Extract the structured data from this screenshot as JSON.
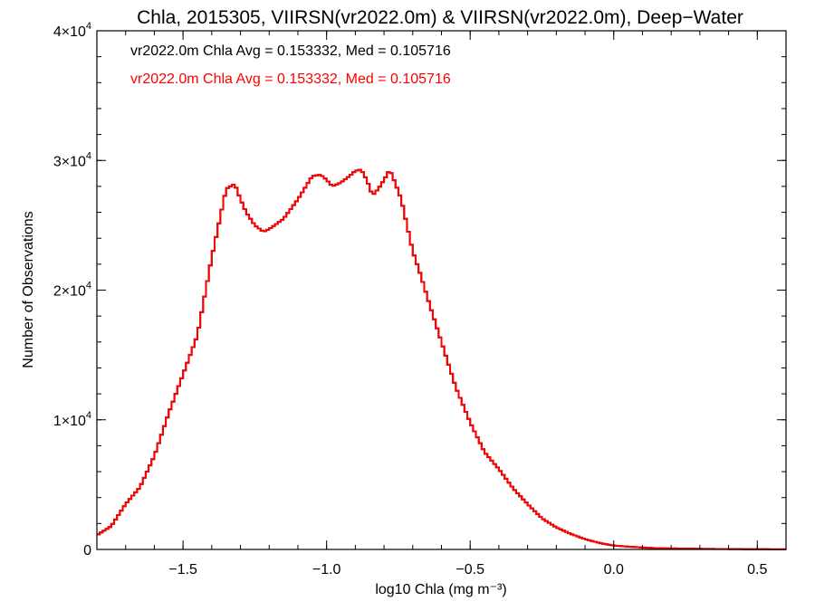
{
  "chart_data": {
    "type": "line",
    "title": "Chla, 2015305, VIIRSN(vr2022.0m) & VIIRSN(vr2022.0m), Deep−Water",
    "xlabel": "log10 Chla (mg m⁻³)",
    "ylabel": "Number of Observations",
    "xlim": [
      -1.8,
      0.6
    ],
    "ylim": [
      0,
      40000
    ],
    "x_ticks": [
      -1.5,
      -1.0,
      -0.5,
      0.0,
      0.5
    ],
    "x_tick_labels": [
      "−1.5",
      "−1.0",
      "−0.5",
      "0.0",
      "0.5"
    ],
    "y_ticks": [
      0,
      10000,
      20000,
      30000,
      40000
    ],
    "y_tick_labels": [
      {
        "base": "0",
        "exp": ""
      },
      {
        "base": "1×10",
        "exp": "4"
      },
      {
        "base": "2×10",
        "exp": "4"
      },
      {
        "base": "3×10",
        "exp": "4"
      },
      {
        "base": "4×10",
        "exp": "4"
      }
    ],
    "grid": false,
    "step": true,
    "annotations": [
      {
        "text": "vr2022.0m Chla Avg = 0.153332, Med = 0.105716",
        "color": "#000000"
      },
      {
        "text": "vr2022.0m Chla Avg = 0.153332, Med = 0.105716",
        "color": "#ff0000"
      }
    ],
    "series": [
      {
        "color": "#000000",
        "x": [
          -1.8,
          -1.75,
          -1.7,
          -1.65,
          -1.6,
          -1.55,
          -1.5,
          -1.45,
          -1.4,
          -1.35,
          -1.32,
          -1.3,
          -1.28,
          -1.25,
          -1.22,
          -1.2,
          -1.15,
          -1.1,
          -1.05,
          -1.02,
          -1.0,
          -0.98,
          -0.95,
          -0.92,
          -0.9,
          -0.88,
          -0.86,
          -0.84,
          -0.82,
          -0.8,
          -0.78,
          -0.76,
          -0.74,
          -0.72,
          -0.7,
          -0.67,
          -0.65,
          -0.6,
          -0.55,
          -0.5,
          -0.45,
          -0.4,
          -0.35,
          -0.3,
          -0.25,
          -0.2,
          -0.15,
          -0.1,
          -0.05,
          0.0,
          0.05,
          0.1,
          0.15,
          0.2,
          0.3,
          0.4,
          0.5,
          0.6
        ],
        "y": [
          1100,
          1800,
          3500,
          4800,
          7200,
          10500,
          13500,
          16500,
          22500,
          27800,
          28200,
          27000,
          26000,
          25000,
          24500,
          24700,
          25500,
          27000,
          28800,
          28900,
          28500,
          28000,
          28300,
          28800,
          29200,
          29300,
          28500,
          27300,
          27800,
          28500,
          29300,
          28200,
          27000,
          25000,
          23000,
          21000,
          19500,
          16000,
          12500,
          9800,
          7500,
          6200,
          4700,
          3500,
          2400,
          1700,
          1200,
          800,
          500,
          300,
          220,
          150,
          100,
          80,
          50,
          30,
          15,
          10
        ]
      },
      {
        "color": "#ff0000",
        "x": [
          -1.8,
          -1.75,
          -1.7,
          -1.65,
          -1.6,
          -1.55,
          -1.5,
          -1.45,
          -1.4,
          -1.35,
          -1.32,
          -1.3,
          -1.28,
          -1.25,
          -1.22,
          -1.2,
          -1.15,
          -1.1,
          -1.05,
          -1.02,
          -1.0,
          -0.98,
          -0.95,
          -0.92,
          -0.9,
          -0.88,
          -0.86,
          -0.84,
          -0.82,
          -0.8,
          -0.78,
          -0.76,
          -0.74,
          -0.72,
          -0.7,
          -0.67,
          -0.65,
          -0.6,
          -0.55,
          -0.5,
          -0.45,
          -0.4,
          -0.35,
          -0.3,
          -0.25,
          -0.2,
          -0.15,
          -0.1,
          -0.05,
          0.0,
          0.05,
          0.1,
          0.15,
          0.2,
          0.3,
          0.4,
          0.5,
          0.6
        ],
        "y": [
          1100,
          1800,
          3500,
          4800,
          7200,
          10500,
          13500,
          16500,
          22500,
          27800,
          28200,
          27000,
          26000,
          25000,
          24500,
          24700,
          25500,
          27000,
          28800,
          28900,
          28500,
          28000,
          28300,
          28800,
          29200,
          29300,
          28500,
          27300,
          27800,
          28500,
          29300,
          28200,
          27000,
          25000,
          23000,
          21000,
          19500,
          16000,
          12500,
          9800,
          7500,
          6200,
          4700,
          3500,
          2400,
          1700,
          1200,
          800,
          500,
          300,
          220,
          150,
          100,
          80,
          50,
          30,
          15,
          10
        ]
      }
    ]
  }
}
